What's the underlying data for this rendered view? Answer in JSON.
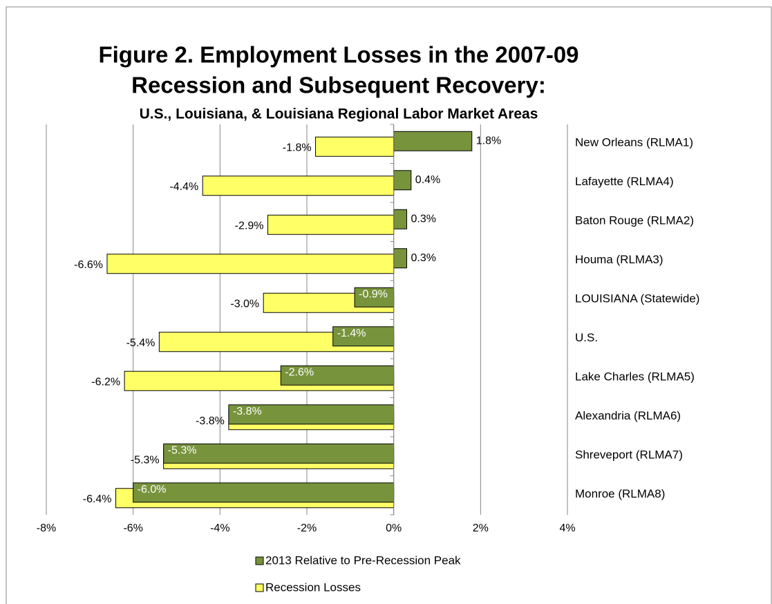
{
  "chart_data": {
    "type": "bar",
    "orientation": "horizontal",
    "title": [
      "Figure 2.  Employment Losses in the 2007-09",
      "Recession and Subsequent Recovery:"
    ],
    "subtitle": "U.S., Louisiana, & Louisiana Regional Labor Market Areas",
    "categories": [
      "New Orleans (RLMA1)",
      "Lafayette (RLMA4)",
      "Baton Rouge (RLMA2)",
      "Houma (RLMA3)",
      "LOUISIANA (Statewide)",
      "U.S.",
      "Lake Charles (RLMA5)",
      "Alexandria (RLMA6)",
      "Shreveport (RLMA7)",
      "Monroe (RLMA8)"
    ],
    "series": [
      {
        "name": "2013 Relative to Pre-Recession Peak",
        "color": "#77933c",
        "values": [
          1.8,
          0.4,
          0.3,
          0.3,
          -0.9,
          -1.4,
          -2.6,
          -3.8,
          -5.3,
          -6.0
        ],
        "value_labels": [
          "1.8%",
          "0.4%",
          "0.3%",
          "0.3%",
          "-0.9%",
          "-1.4%",
          "-2.6%",
          "-3.8%",
          "-5.3%",
          "-6.0%"
        ]
      },
      {
        "name": "Recession Losses",
        "color": "#ffff66",
        "values": [
          -1.8,
          -4.4,
          -2.9,
          -6.6,
          -3.0,
          -5.4,
          -6.2,
          -3.8,
          -5.3,
          -6.4
        ],
        "value_labels": [
          "-1.8%",
          "-4.4%",
          "-2.9%",
          "-6.6%",
          "-3.0%",
          "-5.4%",
          "-6.2%",
          "-3.8%",
          "-5.3%",
          "-6.4%"
        ]
      }
    ],
    "xlim": [
      -8,
      4
    ],
    "xticks": [
      {
        "value": -8,
        "label": "-8%"
      },
      {
        "value": -6,
        "label": "-6%"
      },
      {
        "value": -4,
        "label": "-4%"
      },
      {
        "value": -2,
        "label": "-2%"
      },
      {
        "value": 0,
        "label": "0%"
      },
      {
        "value": 2,
        "label": "2%"
      },
      {
        "value": 4,
        "label": "4%"
      }
    ],
    "grid": true,
    "legend": "bottom"
  }
}
